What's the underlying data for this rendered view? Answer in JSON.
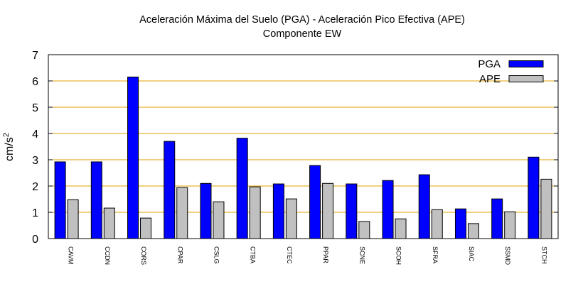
{
  "chart_data": {
    "type": "bar",
    "title": "Aceleración Máxima del Suelo (PGA) -  Aceleración Pico Efectiva (APE)",
    "subtitle": "Componente EW",
    "xlabel": "",
    "ylabel": "cm/s",
    "ylabel_superscript": "2",
    "ylim": [
      0,
      7
    ],
    "yticks": [
      "0",
      "1",
      "2",
      "3",
      "4",
      "5",
      "6",
      "7"
    ],
    "grid": "horizontal",
    "legend_position": "top-right",
    "categories": [
      "CAVM",
      "CCDN",
      "CORS",
      "CPAR",
      "CSLG",
      "CTBA",
      "CTEC",
      "PPAR",
      "SCNE",
      "SCOH",
      "SFRA",
      "SIAC",
      "SSMD",
      "STCH"
    ],
    "series": [
      {
        "name": "PGA",
        "color": "#0000ff",
        "values": [
          2.92,
          2.92,
          6.15,
          3.7,
          2.1,
          3.82,
          2.08,
          2.78,
          2.08,
          2.21,
          2.43,
          1.13,
          1.51,
          3.1
        ]
      },
      {
        "name": "APE",
        "color": "#c0c0c0",
        "values": [
          1.48,
          1.16,
          0.78,
          1.94,
          1.4,
          1.97,
          1.51,
          2.1,
          0.65,
          0.75,
          1.1,
          0.57,
          1.02,
          2.26
        ]
      }
    ],
    "grid_color": "#e0a000"
  }
}
